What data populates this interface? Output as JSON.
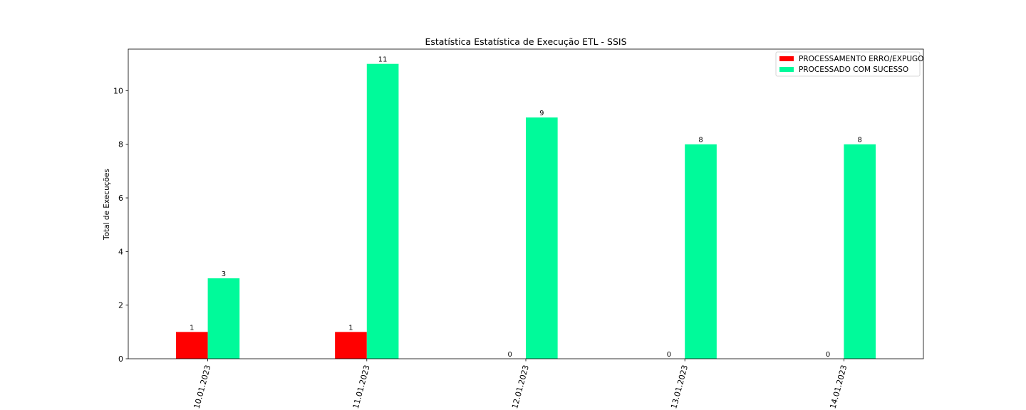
{
  "chart_data": {
    "type": "bar",
    "title": "Estatística Estatística de Execução ETL - SSIS",
    "xlabel": "",
    "ylabel": "Total de Execuções",
    "categories": [
      "10.01.2023",
      "11.01.2023",
      "12.01.2023",
      "13.01.2023",
      "14.01.2023"
    ],
    "series": [
      {
        "name": "PROCESSAMENTO ERRO/EXPUGO",
        "color": "#ff0000",
        "values": [
          1,
          1,
          0,
          0,
          0
        ]
      },
      {
        "name": "PROCESSADO COM SUCESSO",
        "color": "#00fa9a",
        "values": [
          3,
          11,
          9,
          8,
          8
        ]
      }
    ],
    "ylim": [
      0,
      11.55
    ],
    "yticks": [
      0,
      2,
      4,
      6,
      8,
      10
    ],
    "grid": false,
    "legend_position": "upper right",
    "xtick_rotation": -75
  }
}
